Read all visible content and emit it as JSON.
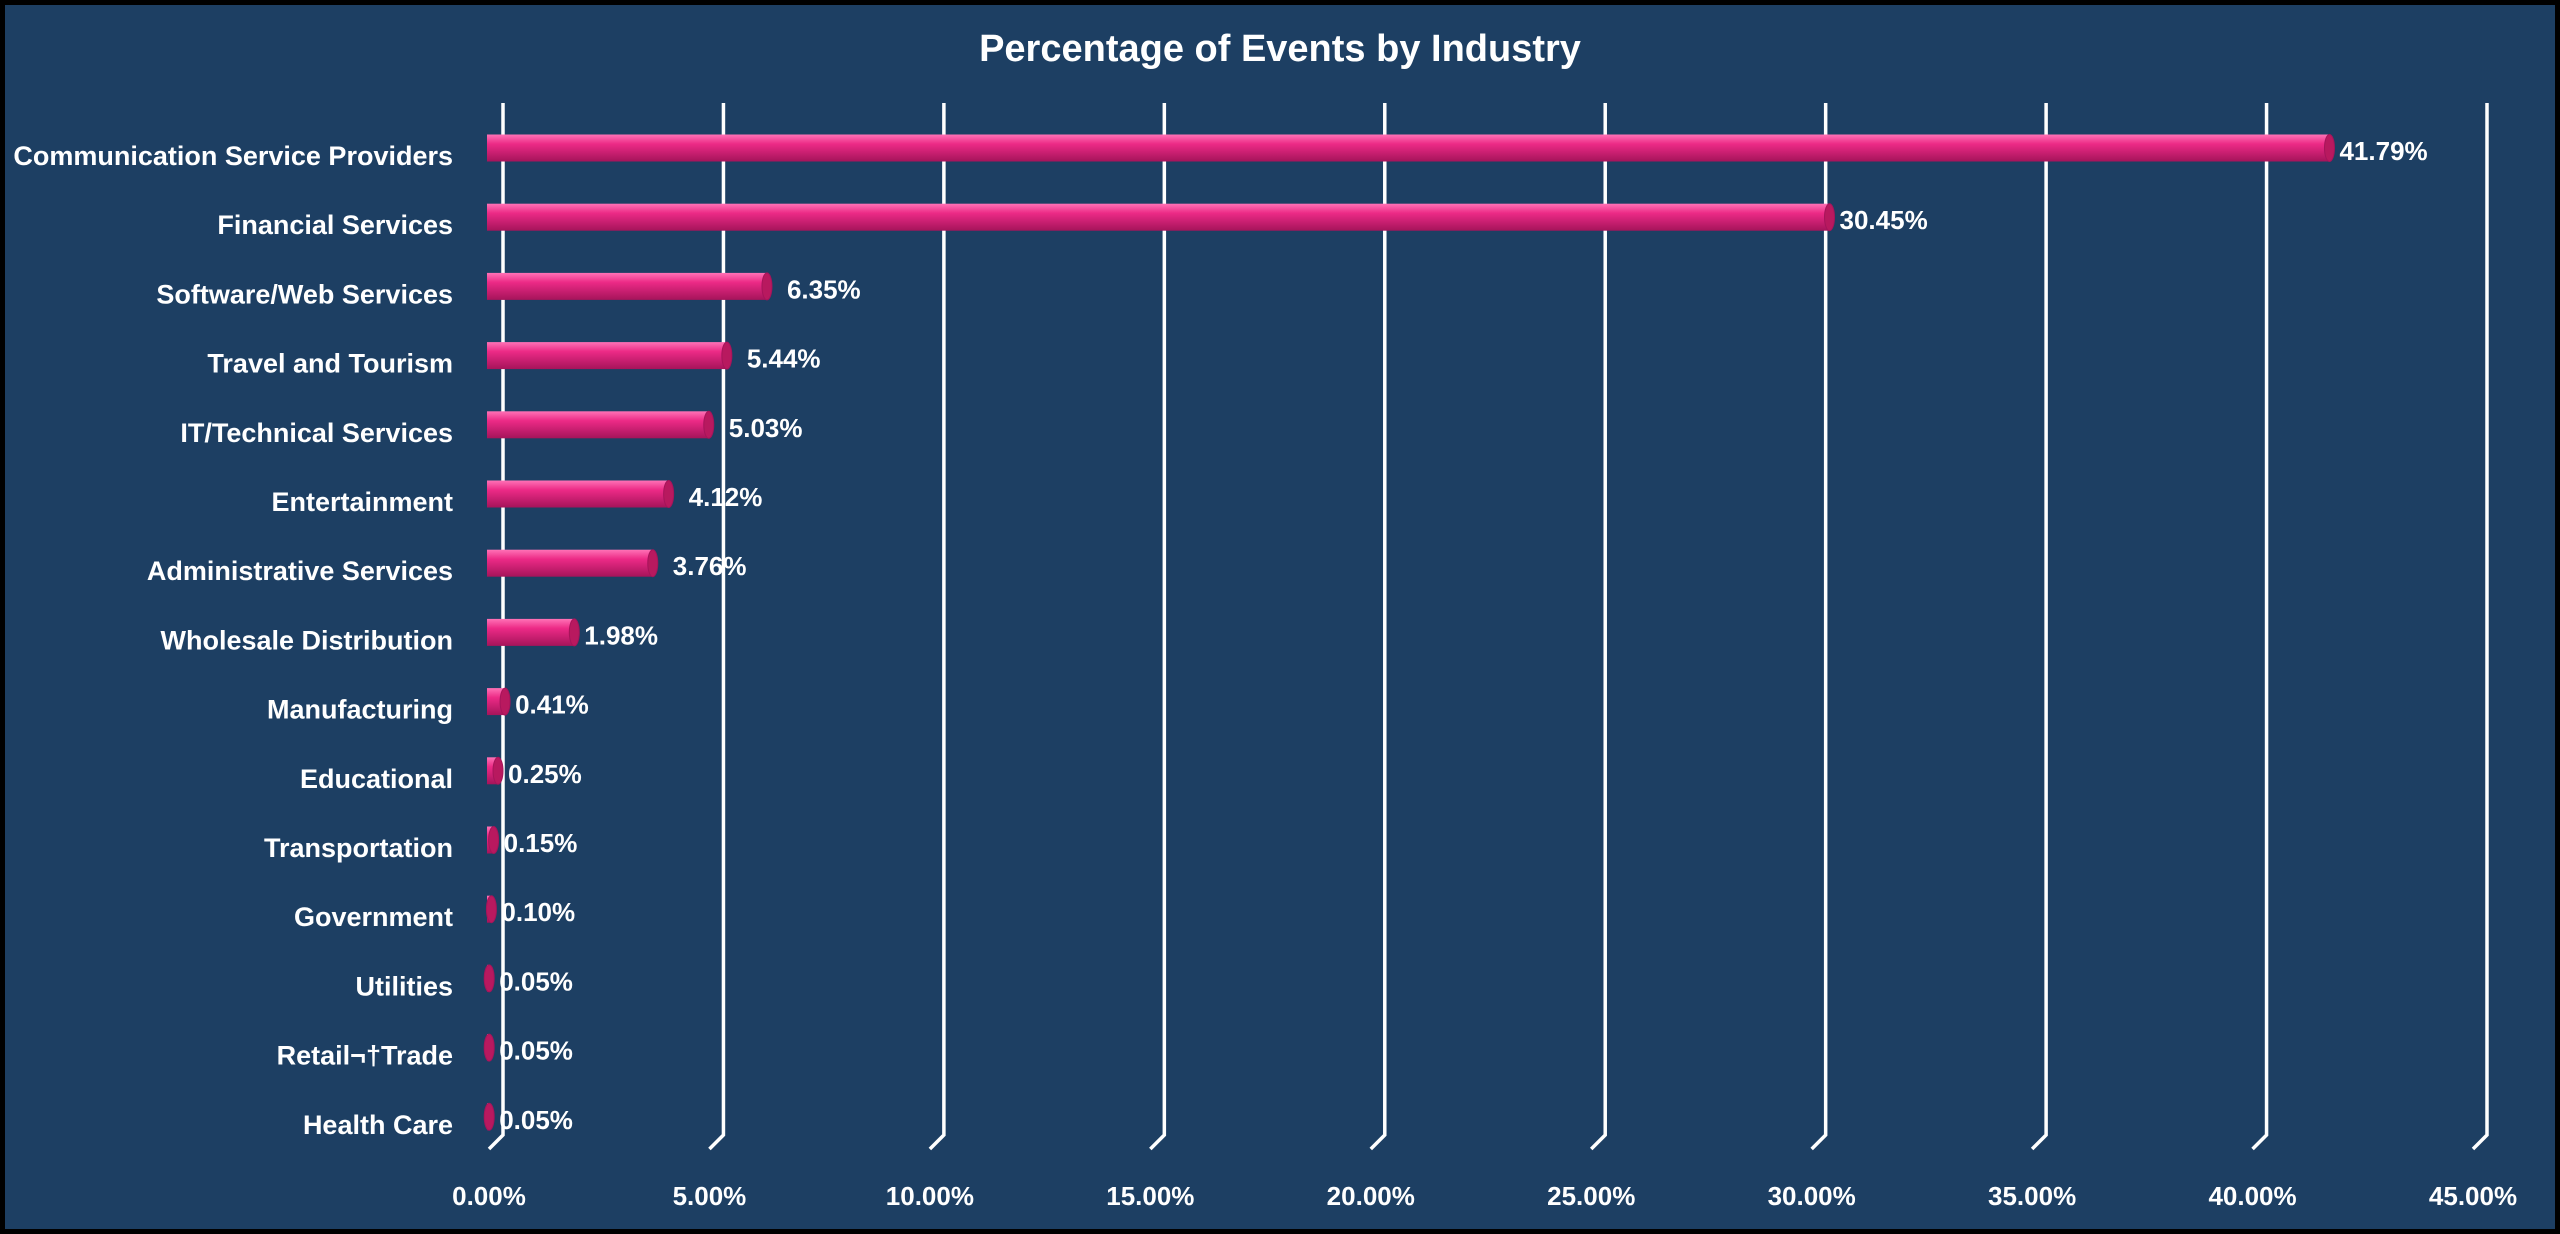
{
  "colors": {
    "background": "#1d3f63",
    "bar_front": "#ec2a86",
    "bar_light": "#ff72b6",
    "bar_dark": "#a5145a",
    "bar_cap": "#b8195f",
    "gridline": "#ffffff",
    "text": "#ffffff",
    "frame_border": "#000000"
  },
  "chart_data": {
    "type": "bar",
    "orientation": "horizontal",
    "style": "3d-cylinder",
    "title": "Percentage of Events by Industry",
    "xlabel": "",
    "ylabel": "",
    "xlim": [
      0,
      45
    ],
    "x_ticks": [
      0,
      5,
      10,
      15,
      20,
      25,
      30,
      35,
      40,
      45
    ],
    "x_tick_labels": [
      "0.00%",
      "5.00%",
      "10.00%",
      "15.00%",
      "20.00%",
      "25.00%",
      "30.00%",
      "35.00%",
      "40.00%",
      "45.00%"
    ],
    "grid": true,
    "legend": "none",
    "categories": [
      "Communication Service Providers",
      "Financial Services",
      "Software/Web Services",
      "Travel and Tourism",
      "IT/Technical Services",
      "Entertainment",
      "Administrative Services",
      "Wholesale Distribution",
      "Manufacturing",
      "Educational",
      "Transportation",
      "Government",
      "Utilities",
      "Retail¬†Trade",
      "Health Care"
    ],
    "values": [
      41.79,
      30.45,
      6.35,
      5.44,
      5.03,
      4.12,
      3.76,
      1.98,
      0.41,
      0.25,
      0.15,
      0.1,
      0.05,
      0.05,
      0.05
    ],
    "data_labels": [
      "41.79%",
      "30.45%",
      "6.35%",
      "5.44%",
      "5.03%",
      "4.12%",
      "3.76%",
      "1.98%",
      "0.41%",
      "0.25%",
      "0.15%",
      "0.10%",
      "0.05%",
      "0.05%",
      "0.05%"
    ]
  }
}
